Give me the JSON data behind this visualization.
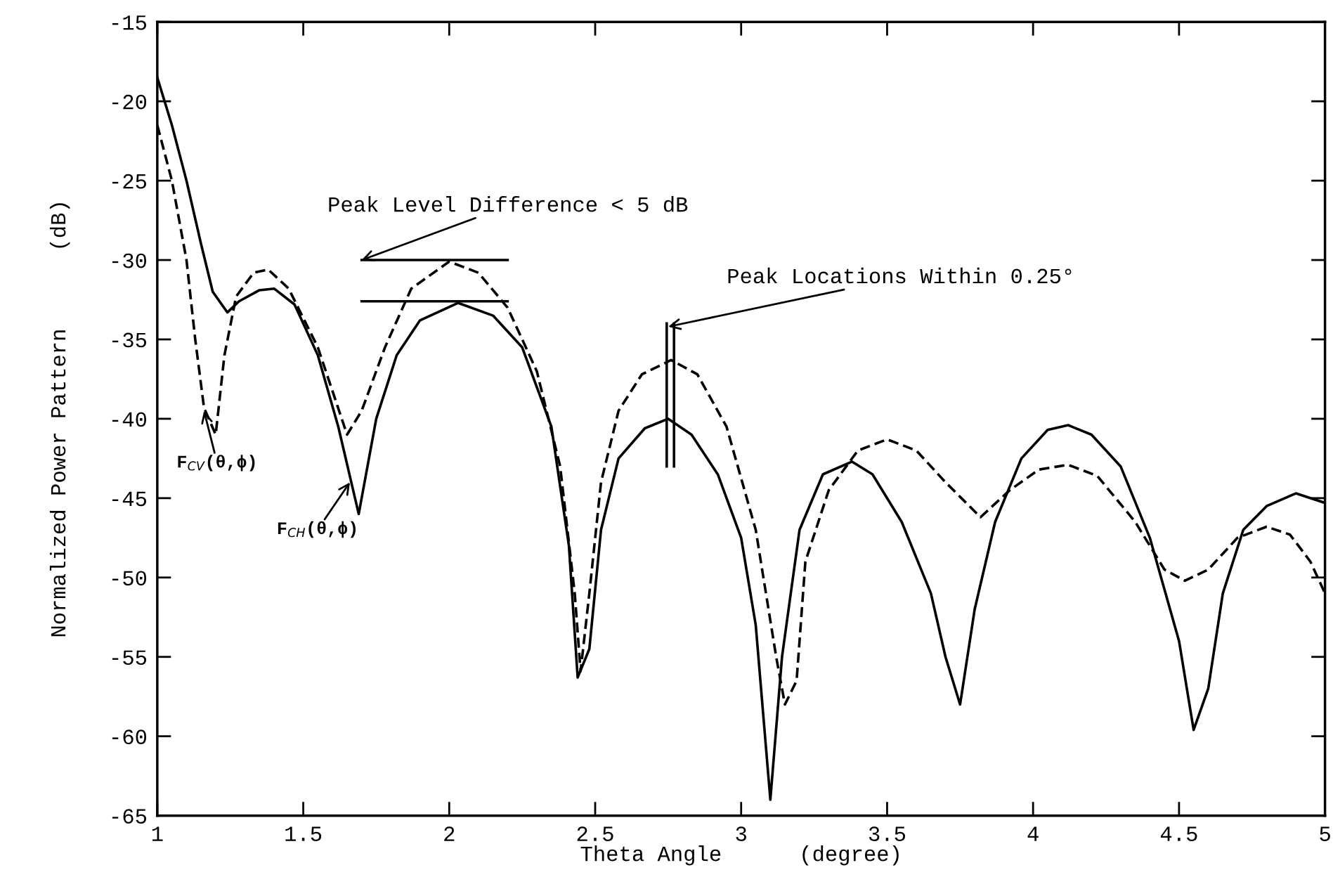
{
  "chart_data": {
    "type": "line",
    "xlabel": "Theta Angle      (degree)",
    "ylabel": "Normalized Power Pattern      (dB)",
    "xlim": [
      1,
      5
    ],
    "ylim": [
      -65,
      -15
    ],
    "xticks": [
      1,
      1.5,
      2,
      2.5,
      3,
      3.5,
      4,
      4.5,
      5
    ],
    "yticks": [
      -15,
      -20,
      -25,
      -30,
      -35,
      -40,
      -45,
      -50,
      -55,
      -60,
      -65
    ],
    "grid": false,
    "series": [
      {
        "color": "#000000",
        "line_style": "solid",
        "x": [
          1.0,
          1.05,
          1.1,
          1.15,
          1.19,
          1.24,
          1.28,
          1.35,
          1.4,
          1.47,
          1.55,
          1.62,
          1.69,
          1.75,
          1.82,
          1.9,
          2.03,
          2.15,
          2.25,
          2.35,
          2.41,
          2.44,
          2.48,
          2.52,
          2.58,
          2.67,
          2.75,
          2.83,
          2.92,
          3.0,
          3.05,
          3.1,
          3.14,
          3.2,
          3.28,
          3.38,
          3.45,
          3.55,
          3.65,
          3.7,
          3.75,
          3.8,
          3.87,
          3.96,
          4.05,
          4.12,
          4.2,
          4.3,
          4.4,
          4.5,
          4.55,
          4.6,
          4.65,
          4.72,
          4.8,
          4.9,
          5.0
        ],
        "values": [
          -18.5,
          -21.5,
          -25,
          -29,
          -32,
          -33.3,
          -32.6,
          -31.9,
          -31.8,
          -32.8,
          -36,
          -40.5,
          -46,
          -40,
          -36,
          -33.8,
          -32.7,
          -33.5,
          -35.5,
          -40.5,
          -48,
          -56.3,
          -54.5,
          -47,
          -42.5,
          -40.6,
          -40,
          -41,
          -43.5,
          -47.5,
          -53,
          -64,
          -55,
          -47,
          -43.5,
          -42.7,
          -43.5,
          -46.5,
          -51,
          -55,
          -58,
          -52,
          -46.5,
          -42.5,
          -40.7,
          -40.4,
          -41,
          -43,
          -47.5,
          -54,
          -59.6,
          -57,
          -51,
          -47,
          -45.5,
          -44.7,
          -45.3
        ]
      },
      {
        "color": "#000000",
        "line_style": "dashed",
        "x": [
          1.0,
          1.05,
          1.1,
          1.13,
          1.16,
          1.2,
          1.23,
          1.27,
          1.33,
          1.38,
          1.45,
          1.55,
          1.65,
          1.7,
          1.78,
          1.87,
          2.0,
          2.1,
          2.2,
          2.3,
          2.38,
          2.43,
          2.45,
          2.48,
          2.52,
          2.58,
          2.66,
          2.76,
          2.85,
          2.95,
          3.05,
          3.12,
          3.15,
          3.19,
          3.22,
          3.3,
          3.4,
          3.5,
          3.6,
          3.7,
          3.82,
          3.92,
          4.02,
          4.12,
          4.22,
          4.35,
          4.45,
          4.52,
          4.6,
          4.7,
          4.8,
          4.88,
          4.95,
          5.0
        ],
        "values": [
          -21.5,
          -25,
          -30,
          -35,
          -39.3,
          -41,
          -36,
          -32.3,
          -30.8,
          -30.6,
          -31.8,
          -35.5,
          -41,
          -39.5,
          -35.5,
          -31.8,
          -30.1,
          -30.8,
          -33,
          -37,
          -43,
          -51,
          -55.9,
          -51,
          -44,
          -39.5,
          -37.2,
          -36.3,
          -37.2,
          -40.5,
          -47,
          -55,
          -58,
          -56.5,
          -49,
          -44.5,
          -42,
          -41.3,
          -42,
          -44,
          -46.2,
          -44.5,
          -43.2,
          -42.9,
          -43.6,
          -46.5,
          -49.5,
          -50.2,
          -49.5,
          -47.5,
          -46.8,
          -47.3,
          -49,
          -51
        ]
      },
      {
        "color": "#000000",
        "line_style": "solid",
        "x": [
          1.7,
          2.2
        ],
        "values": [
          -30,
          -30
        ]
      },
      {
        "color": "#000000",
        "line_style": "solid",
        "x": [
          1.7,
          2.2
        ],
        "values": [
          -32.6,
          -32.6
        ]
      },
      {
        "color": "#000000",
        "line_style": "solid",
        "x": [
          2.745,
          2.745
        ],
        "values": [
          -34,
          -43
        ]
      },
      {
        "color": "#000000",
        "line_style": "solid",
        "x": [
          2.77,
          2.77
        ],
        "values": [
          -34,
          -43
        ]
      }
    ],
    "annotations": [
      {
        "text": "Peak Level Difference < 5 dB",
        "x": 1.7,
        "y": -30
      },
      {
        "text": "Peak Locations Within 0.25°",
        "x": 2.75,
        "y": -34.2
      },
      {
        "text": "F$_{CV}$(θ,ϕ)",
        "x": 1.16,
        "y": -39.5
      },
      {
        "text": "F$_{CH}$(θ,ϕ)",
        "x": 1.66,
        "y": -44
      }
    ]
  }
}
